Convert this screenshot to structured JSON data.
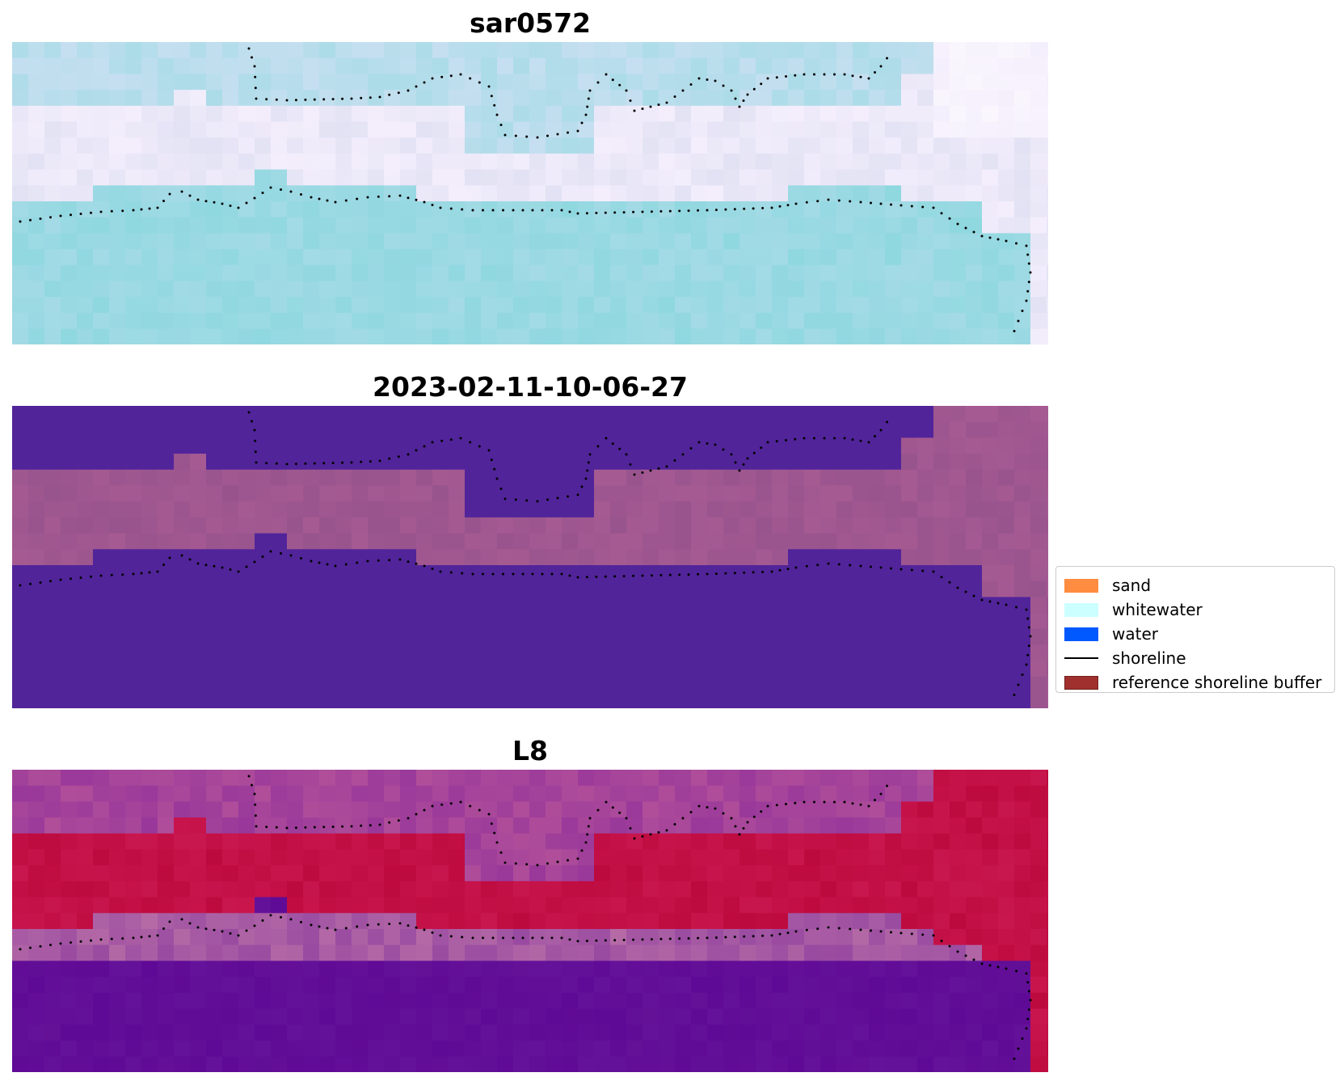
{
  "figure": {
    "panels": [
      {
        "title": "sar0572",
        "style": "rgb"
      },
      {
        "title": "2023-02-11-10-06-27",
        "style": "class"
      },
      {
        "title": "L8",
        "style": "index"
      }
    ]
  },
  "legend": {
    "items": [
      {
        "label": "sand",
        "kind": "patch",
        "color": "#ff8c40",
        "edge": "#ff8c40"
      },
      {
        "label": "whitewater",
        "kind": "patch",
        "color": "#ccffff",
        "edge": "#ccffff"
      },
      {
        "label": "water",
        "kind": "patch",
        "color": "#0059ff",
        "edge": "#0059ff"
      },
      {
        "label": "shoreline",
        "kind": "line",
        "color": "#000000"
      },
      {
        "label": "reference shoreline buffer",
        "kind": "patch",
        "color": "#a0302e",
        "edge": "#70201e"
      }
    ]
  },
  "colors": {
    "sar_water": "#90d8e0",
    "sar_mid": "#c6dff0",
    "sar_band": "#e2e2f4",
    "sar_highlight": "#f4eefc",
    "class_water": "#51249a",
    "class_land": "#a65a92",
    "class_land_dark": "#8e4f8a",
    "index_water": "#5f0a96",
    "index_top": "#b04e9a",
    "index_land": "#c8164e",
    "index_land_dark": "#bd0a3e",
    "index_transition": "#b56aa6"
  }
}
